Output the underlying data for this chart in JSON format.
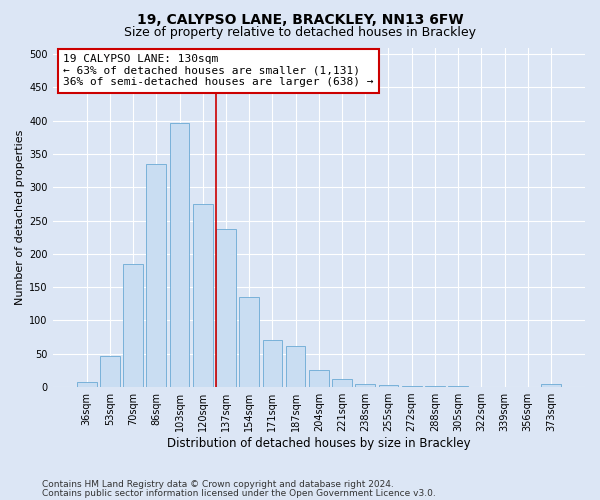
{
  "title1": "19, CALYPSO LANE, BRACKLEY, NN13 6FW",
  "title2": "Size of property relative to detached houses in Brackley",
  "xlabel": "Distribution of detached houses by size in Brackley",
  "ylabel": "Number of detached properties",
  "categories": [
    "36sqm",
    "53sqm",
    "70sqm",
    "86sqm",
    "103sqm",
    "120sqm",
    "137sqm",
    "154sqm",
    "171sqm",
    "187sqm",
    "204sqm",
    "221sqm",
    "238sqm",
    "255sqm",
    "272sqm",
    "288sqm",
    "305sqm",
    "322sqm",
    "339sqm",
    "356sqm",
    "373sqm"
  ],
  "values": [
    8,
    46,
    185,
    335,
    397,
    275,
    237,
    135,
    70,
    62,
    25,
    12,
    5,
    3,
    2,
    1,
    1,
    0,
    0,
    0,
    4
  ],
  "bar_color": "#c9ddf2",
  "bar_edge_color": "#6aaad4",
  "vline_color": "#cc0000",
  "annotation_line1": "19 CALYPSO LANE: 130sqm",
  "annotation_line2": "← 63% of detached houses are smaller (1,131)",
  "annotation_line3": "36% of semi-detached houses are larger (638) →",
  "annotation_box_color": "#ffffff",
  "annotation_box_edge": "#cc0000",
  "ylim": [
    0,
    510
  ],
  "yticks": [
    0,
    50,
    100,
    150,
    200,
    250,
    300,
    350,
    400,
    450,
    500
  ],
  "footer1": "Contains HM Land Registry data © Crown copyright and database right 2024.",
  "footer2": "Contains public sector information licensed under the Open Government Licence v3.0.",
  "background_color": "#dce6f5",
  "plot_background": "#dce6f5",
  "grid_color": "#ffffff",
  "title1_fontsize": 10,
  "title2_fontsize": 9,
  "xlabel_fontsize": 8.5,
  "ylabel_fontsize": 8,
  "tick_fontsize": 7,
  "annotation_fontsize": 8,
  "footer_fontsize": 6.5
}
